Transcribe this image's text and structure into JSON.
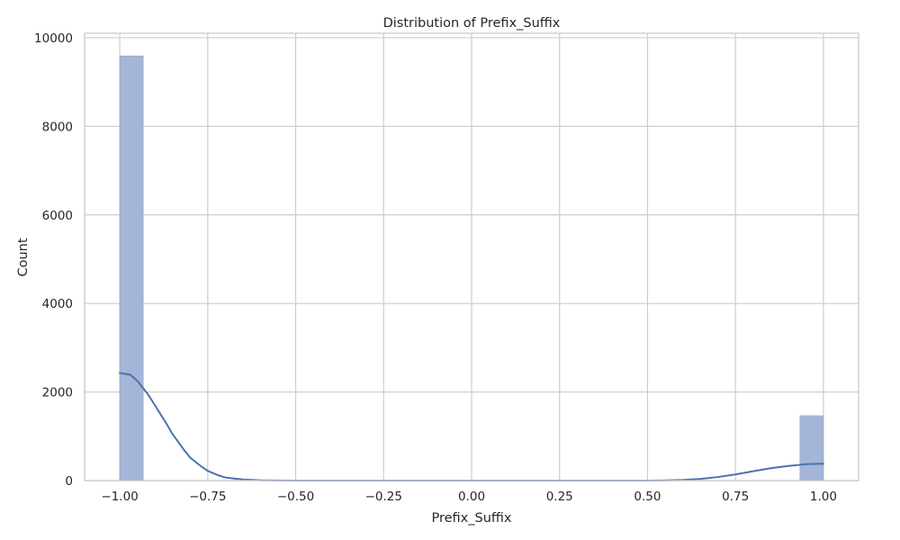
{
  "chart_data": {
    "type": "bar",
    "title": "Distribution of Prefix_Suffix",
    "xlabel": "Prefix_Suffix",
    "ylabel": "Count",
    "xlim": [
      -1.1,
      1.1
    ],
    "ylim": [
      0,
      10100
    ],
    "x_ticks": [
      -1.0,
      -0.75,
      -0.5,
      -0.25,
      0.0,
      0.25,
      0.5,
      0.75,
      1.0
    ],
    "x_tick_labels": [
      "−1.00",
      "−0.75",
      "−0.50",
      "−0.25",
      "0.00",
      "0.25",
      "0.50",
      "0.75",
      "1.00"
    ],
    "y_ticks": [
      0,
      2000,
      4000,
      6000,
      8000,
      10000
    ],
    "y_tick_labels": [
      "0",
      "2000",
      "4000",
      "6000",
      "8000",
      "10000"
    ],
    "grid": true,
    "bars": [
      {
        "x_start": -1.0,
        "x_end": -0.9333,
        "count": 9590
      },
      {
        "x_start": 0.9333,
        "x_end": 1.0,
        "count": 1465
      }
    ],
    "kde": {
      "x": [
        -1.0,
        -0.97,
        -0.95,
        -0.92,
        -0.9,
        -0.87,
        -0.85,
        -0.82,
        -0.8,
        -0.77,
        -0.75,
        -0.72,
        -0.7,
        -0.65,
        -0.6,
        -0.55,
        -0.5,
        -0.4,
        -0.3,
        0.0,
        0.3,
        0.5,
        0.55,
        0.6,
        0.65,
        0.7,
        0.75,
        0.8,
        0.85,
        0.9,
        0.95,
        1.0
      ],
      "y": [
        2430,
        2390,
        2250,
        1950,
        1700,
        1320,
        1050,
        720,
        520,
        330,
        220,
        120,
        70,
        25,
        8,
        3,
        1,
        0,
        0,
        0,
        0,
        1,
        4,
        15,
        38,
        80,
        140,
        210,
        280,
        330,
        370,
        380
      ]
    },
    "colors": {
      "bar_fill": "#a4b6d7",
      "bar_edge": "#8fa3c8",
      "kde_line": "#4c72b0"
    }
  }
}
